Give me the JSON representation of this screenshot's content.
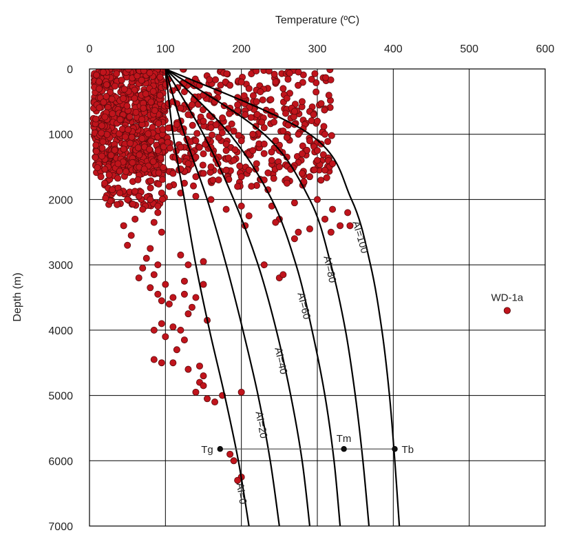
{
  "chart_data": {
    "type": "scatter",
    "xlabel": "Temperature (ºC)",
    "ylabel": "Depth (m)",
    "xlim": [
      0,
      600
    ],
    "ylim": [
      0,
      7000
    ],
    "x_axis_position": "top",
    "y_axis_inverted": true,
    "x_ticks": [
      0,
      100,
      200,
      300,
      400,
      500,
      600
    ],
    "y_ticks": [
      0,
      1000,
      2000,
      3000,
      4000,
      5000,
      6000,
      7000
    ],
    "grid": true,
    "colors": {
      "points": "#c0141c",
      "point_edge": "#5a0a0c",
      "curves": "#000000",
      "grid": "#000000"
    },
    "curves": [
      {
        "label": "AI=0",
        "points": [
          [
            100,
            0
          ],
          [
            110,
            1000
          ],
          [
            125,
            2000
          ],
          [
            140,
            3000
          ],
          [
            158,
            4000
          ],
          [
            178,
            5000
          ],
          [
            196,
            6000
          ],
          [
            210,
            7000
          ]
        ]
      },
      {
        "label": "AI=20",
        "points": [
          [
            100,
            0
          ],
          [
            125,
            1000
          ],
          [
            155,
            2000
          ],
          [
            180,
            3000
          ],
          [
            202,
            4000
          ],
          [
            222,
            5000
          ],
          [
            238,
            6000
          ],
          [
            250,
            7000
          ]
        ]
      },
      {
        "label": "AI=40",
        "points": [
          [
            100,
            0
          ],
          [
            150,
            1000
          ],
          [
            190,
            2000
          ],
          [
            222,
            3000
          ],
          [
            246,
            4000
          ],
          [
            265,
            5000
          ],
          [
            280,
            6000
          ],
          [
            290,
            7000
          ]
        ]
      },
      {
        "label": "AI=60",
        "points": [
          [
            100,
            0
          ],
          [
            185,
            1000
          ],
          [
            240,
            2000
          ],
          [
            272,
            3000
          ],
          [
            293,
            4000
          ],
          [
            310,
            5000
          ],
          [
            322,
            6000
          ],
          [
            330,
            7000
          ]
        ]
      },
      {
        "label": "AI=80",
        "points": [
          [
            100,
            0
          ],
          [
            230,
            1000
          ],
          [
            290,
            2000
          ],
          [
            318,
            3000
          ],
          [
            337,
            4000
          ],
          [
            350,
            5000
          ],
          [
            360,
            6000
          ],
          [
            368,
            7000
          ]
        ]
      },
      {
        "label": "AI=100",
        "points": [
          [
            100,
            0
          ],
          [
            290,
            1000
          ],
          [
            345,
            2000
          ],
          [
            370,
            3000
          ],
          [
            385,
            4000
          ],
          [
            395,
            5000
          ],
          [
            402,
            6000
          ],
          [
            408,
            7000
          ]
        ]
      }
    ],
    "reference_line": {
      "y": 5820,
      "x_start": 172,
      "x_end": 402
    },
    "annotations": [
      {
        "text": "Tg",
        "x": 172,
        "y": 5820
      },
      {
        "text": "Tm",
        "x": 335,
        "y": 5820
      },
      {
        "text": "Tb",
        "x": 402,
        "y": 5820
      },
      {
        "text": "WD-1a",
        "x": 550,
        "y": 3700
      }
    ],
    "scatter_regions": [
      {
        "x_range": [
          5,
          100
        ],
        "y_range": [
          0,
          1600
        ],
        "count": 700
      },
      {
        "x_range": [
          100,
          320
        ],
        "y_range": [
          0,
          1800
        ],
        "count": 340
      },
      {
        "x_range": [
          20,
          100
        ],
        "y_range": [
          1500,
          2100
        ],
        "count": 70
      }
    ],
    "scatter_points": [
      [
        245,
        200
      ],
      [
        210,
        300
      ],
      [
        185,
        250
      ],
      [
        170,
        350
      ],
      [
        150,
        400
      ],
      [
        165,
        500
      ],
      [
        195,
        550
      ],
      [
        220,
        500
      ],
      [
        260,
        450
      ],
      [
        280,
        500
      ],
      [
        240,
        650
      ],
      [
        205,
        700
      ],
      [
        175,
        750
      ],
      [
        150,
        800
      ],
      [
        130,
        700
      ],
      [
        120,
        600
      ],
      [
        110,
        500
      ],
      [
        115,
        850
      ],
      [
        160,
        900
      ],
      [
        190,
        950
      ],
      [
        230,
        900
      ],
      [
        270,
        850
      ],
      [
        300,
        800
      ],
      [
        310,
        1000
      ],
      [
        290,
        1100
      ],
      [
        260,
        1050
      ],
      [
        230,
        1150
      ],
      [
        200,
        1100
      ],
      [
        170,
        1050
      ],
      [
        140,
        1100
      ],
      [
        120,
        1200
      ],
      [
        150,
        1300
      ],
      [
        180,
        1250
      ],
      [
        210,
        1300
      ],
      [
        250,
        1250
      ],
      [
        280,
        1300
      ],
      [
        300,
        1400
      ],
      [
        320,
        1450
      ],
      [
        310,
        1550
      ],
      [
        280,
        1600
      ],
      [
        250,
        1500
      ],
      [
        220,
        1450
      ],
      [
        190,
        1400
      ],
      [
        160,
        1500
      ],
      [
        130,
        1450
      ],
      [
        110,
        1600
      ],
      [
        140,
        1650
      ],
      [
        170,
        1700
      ],
      [
        200,
        1650
      ],
      [
        230,
        1700
      ],
      [
        260,
        1750
      ],
      [
        290,
        1650
      ],
      [
        300,
        1250
      ],
      [
        260,
        1350
      ],
      [
        240,
        1400
      ],
      [
        210,
        1550
      ],
      [
        180,
        1550
      ],
      [
        150,
        1600
      ],
      [
        125,
        1750
      ],
      [
        105,
        1800
      ],
      [
        200,
        200
      ],
      [
        225,
        350
      ],
      [
        255,
        300
      ],
      [
        185,
        600
      ],
      [
        135,
        550
      ],
      [
        145,
        250
      ],
      [
        125,
        350
      ],
      [
        270,
        650
      ],
      [
        295,
        700
      ],
      [
        255,
        950
      ],
      [
        215,
        1000
      ],
      [
        180,
        1150
      ],
      [
        160,
        1200
      ],
      [
        140,
        1350
      ],
      [
        195,
        1800
      ],
      [
        235,
        1850
      ],
      [
        215,
        1250
      ],
      [
        245,
        1100
      ],
      [
        275,
        1000
      ],
      [
        305,
        1150
      ],
      [
        95,
        1900
      ],
      [
        80,
        2000
      ],
      [
        65,
        1950
      ],
      [
        50,
        2000
      ],
      [
        40,
        1900
      ],
      [
        30,
        1850
      ],
      [
        20,
        1750
      ],
      [
        15,
        1650
      ],
      [
        90,
        2100
      ],
      [
        70,
        2150
      ],
      [
        60,
        2300
      ],
      [
        85,
        2350
      ],
      [
        45,
        2400
      ],
      [
        55,
        2550
      ],
      [
        50,
        2700
      ],
      [
        95,
        2500
      ],
      [
        90,
        2200
      ],
      [
        200,
        2100
      ],
      [
        240,
        2100
      ],
      [
        270,
        2050
      ],
      [
        300,
        2000
      ],
      [
        320,
        2150
      ],
      [
        340,
        2200
      ],
      [
        310,
        2300
      ],
      [
        330,
        2400
      ],
      [
        290,
        2450
      ],
      [
        270,
        2600
      ],
      [
        250,
        2300
      ],
      [
        210,
        2250
      ],
      [
        180,
        2150
      ],
      [
        160,
        2000
      ],
      [
        140,
        1950
      ],
      [
        120,
        1900
      ],
      [
        343,
        2400
      ],
      [
        318,
        2500
      ],
      [
        275,
        2500
      ],
      [
        245,
        2350
      ],
      [
        205,
        2400
      ],
      [
        80,
        2750
      ],
      [
        75,
        2900
      ],
      [
        70,
        3050
      ],
      [
        90,
        3000
      ],
      [
        85,
        3150
      ],
      [
        65,
        3200
      ],
      [
        100,
        3300
      ],
      [
        80,
        3350
      ],
      [
        90,
        3450
      ],
      [
        95,
        3550
      ],
      [
        110,
        3500
      ],
      [
        125,
        3450
      ],
      [
        105,
        3600
      ],
      [
        140,
        3500
      ],
      [
        150,
        3300
      ],
      [
        130,
        3750
      ],
      [
        155,
        3850
      ],
      [
        95,
        3900
      ],
      [
        110,
        3950
      ],
      [
        120,
        4000
      ],
      [
        85,
        4000
      ],
      [
        100,
        4100
      ],
      [
        125,
        4150
      ],
      [
        115,
        4300
      ],
      [
        110,
        4500
      ],
      [
        95,
        4500
      ],
      [
        85,
        4450
      ],
      [
        130,
        4600
      ],
      [
        145,
        4550
      ],
      [
        150,
        4700
      ],
      [
        145,
        4800
      ],
      [
        140,
        4950
      ],
      [
        155,
        5050
      ],
      [
        175,
        5000
      ],
      [
        200,
        4950
      ],
      [
        150,
        4850
      ],
      [
        165,
        5100
      ],
      [
        185,
        5900
      ],
      [
        190,
        6000
      ],
      [
        200,
        6250
      ],
      [
        195,
        6300
      ],
      [
        230,
        3000
      ],
      [
        250,
        3200
      ],
      [
        255,
        3150
      ],
      [
        130,
        3000
      ],
      [
        150,
        2950
      ],
      [
        120,
        2850
      ],
      [
        125,
        3250
      ],
      [
        135,
        3650
      ],
      [
        550,
        3700
      ]
    ]
  }
}
